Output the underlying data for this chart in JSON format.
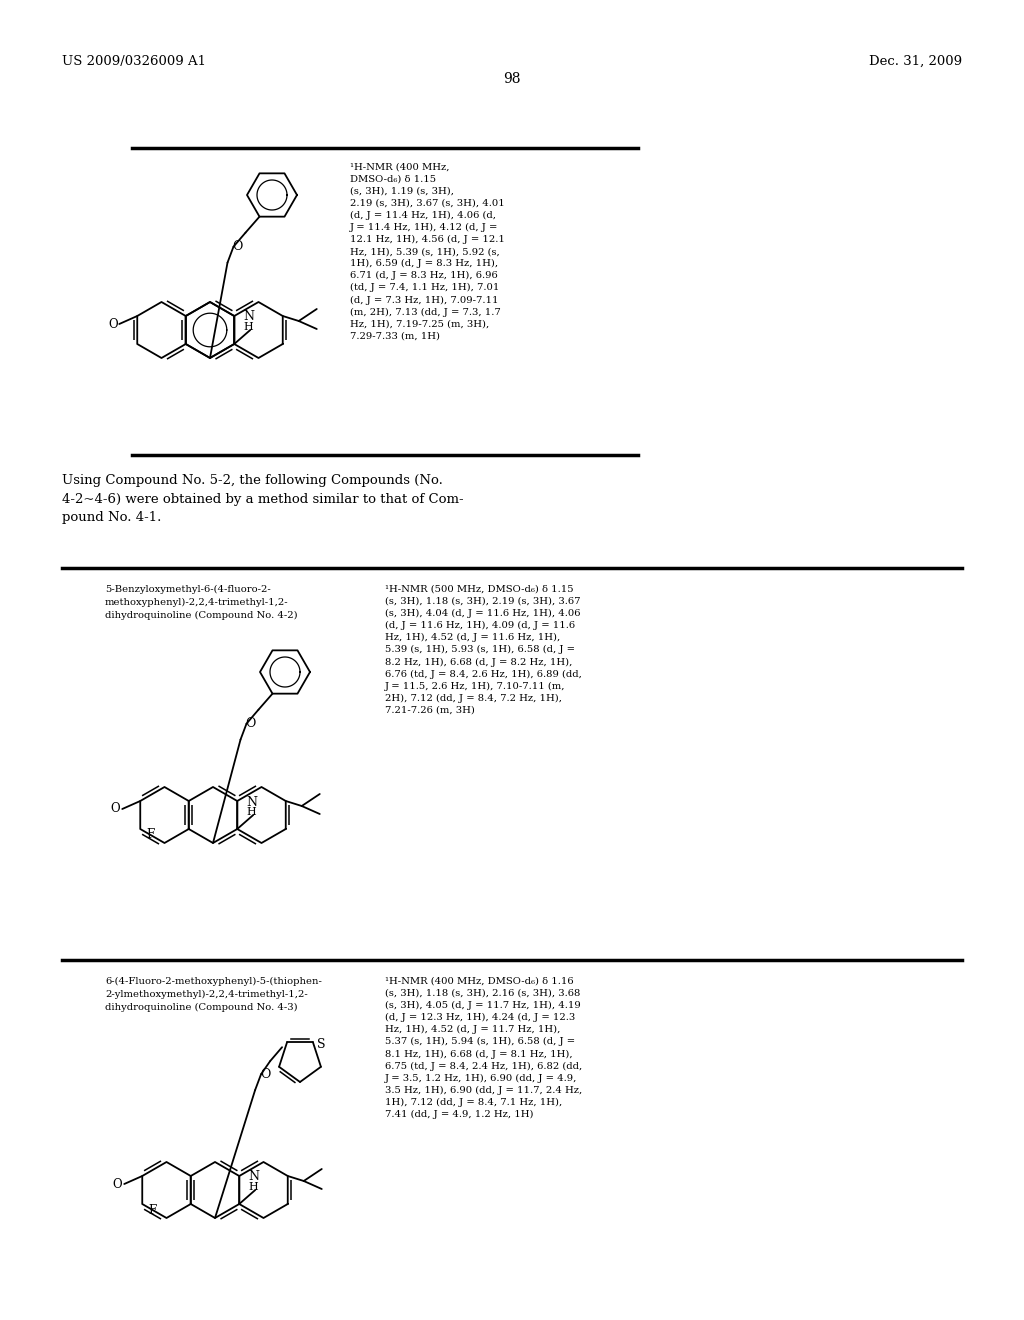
{
  "background_color": "#ffffff",
  "page_number": "98",
  "header_left": "US 2009/0326009 A1",
  "header_right": "Dec. 31, 2009",
  "compound1_nmr": "¹H-NMR (400 MHz,\nDMSO-d₆) δ 1.15\n(s, 3H), 1.19 (s, 3H),\n2.19 (s, 3H), 3.67 (s, 3H), 4.01\n(d, J = 11.4 Hz, 1H), 4.06 (d,\nJ = 11.4 Hz, 1H), 4.12 (d, J =\n12.1 Hz, 1H), 4.56 (d, J = 12.1\nHz, 1H), 5.39 (s, 1H), 5.92 (s,\n1H), 6.59 (d, J = 8.3 Hz, 1H),\n6.71 (d, J = 8.3 Hz, 1H), 6.96\n(td, J = 7.4, 1.1 Hz, 1H), 7.01\n(d, J = 7.3 Hz, 1H), 7.09-7.11\n(m, 2H), 7.13 (dd, J = 7.3, 1.7\nHz, 1H), 7.19-7.25 (m, 3H),\n7.29-7.33 (m, 1H)",
  "compound2_name": "5-Benzyloxymethyl-6-(4-fluoro-2-\nmethoxyphenyl)-2,2,4-trimethyl-1,2-\ndihydroquinoline (Compound No. 4-2)",
  "compound2_nmr": "¹H-NMR (500 MHz, DMSO-d₆) δ 1.15\n(s, 3H), 1.18 (s, 3H), 2.19 (s, 3H), 3.67\n(s, 3H), 4.04 (d, J = 11.6 Hz, 1H), 4.06\n(d, J = 11.6 Hz, 1H), 4.09 (d, J = 11.6\nHz, 1H), 4.52 (d, J = 11.6 Hz, 1H),\n5.39 (s, 1H), 5.93 (s, 1H), 6.58 (d, J =\n8.2 Hz, 1H), 6.68 (d, J = 8.2 Hz, 1H),\n6.76 (td, J = 8.4, 2.6 Hz, 1H), 6.89 (dd,\nJ = 11.5, 2.6 Hz, 1H), 7.10-7.11 (m,\n2H), 7.12 (dd, J = 8.4, 7.2 Hz, 1H),\n7.21-7.26 (m, 3H)",
  "middle_text": "Using Compound No. 5-2, the following Compounds (No.\n4-2~4-6) were obtained by a method similar to that of Com-\npound No. 4-1.",
  "compound3_name": "6-(4-Fluoro-2-methoxyphenyl)-5-(thiophen-\n2-ylmethoxymethyl)-2,2,4-trimethyl-1,2-\ndihydroquinoline (Compound No. 4-3)",
  "compound3_nmr": "¹H-NMR (400 MHz, DMSO-d₆) δ 1.16\n(s, 3H), 1.18 (s, 3H), 2.16 (s, 3H), 3.68\n(s, 3H), 4.05 (d, J = 11.7 Hz, 1H), 4.19\n(d, J = 12.3 Hz, 1H), 4.24 (d, J = 12.3\nHz, 1H), 4.52 (d, J = 11.7 Hz, 1H),\n5.37 (s, 1H), 5.94 (s, 1H), 6.58 (d, J =\n8.1 Hz, 1H), 6.68 (d, J = 8.1 Hz, 1H),\n6.75 (td, J = 8.4, 2.4 Hz, 1H), 6.82 (dd,\nJ = 3.5, 1.2 Hz, 1H), 6.90 (dd, J = 4.9,\n3.5 Hz, 1H), 6.90 (dd, J = 11.7, 2.4 Hz,\n1H), 7.12 (dd, J = 8.4, 7.1 Hz, 1H),\n7.41 (dd, J = 4.9, 1.2 Hz, 1H)"
}
